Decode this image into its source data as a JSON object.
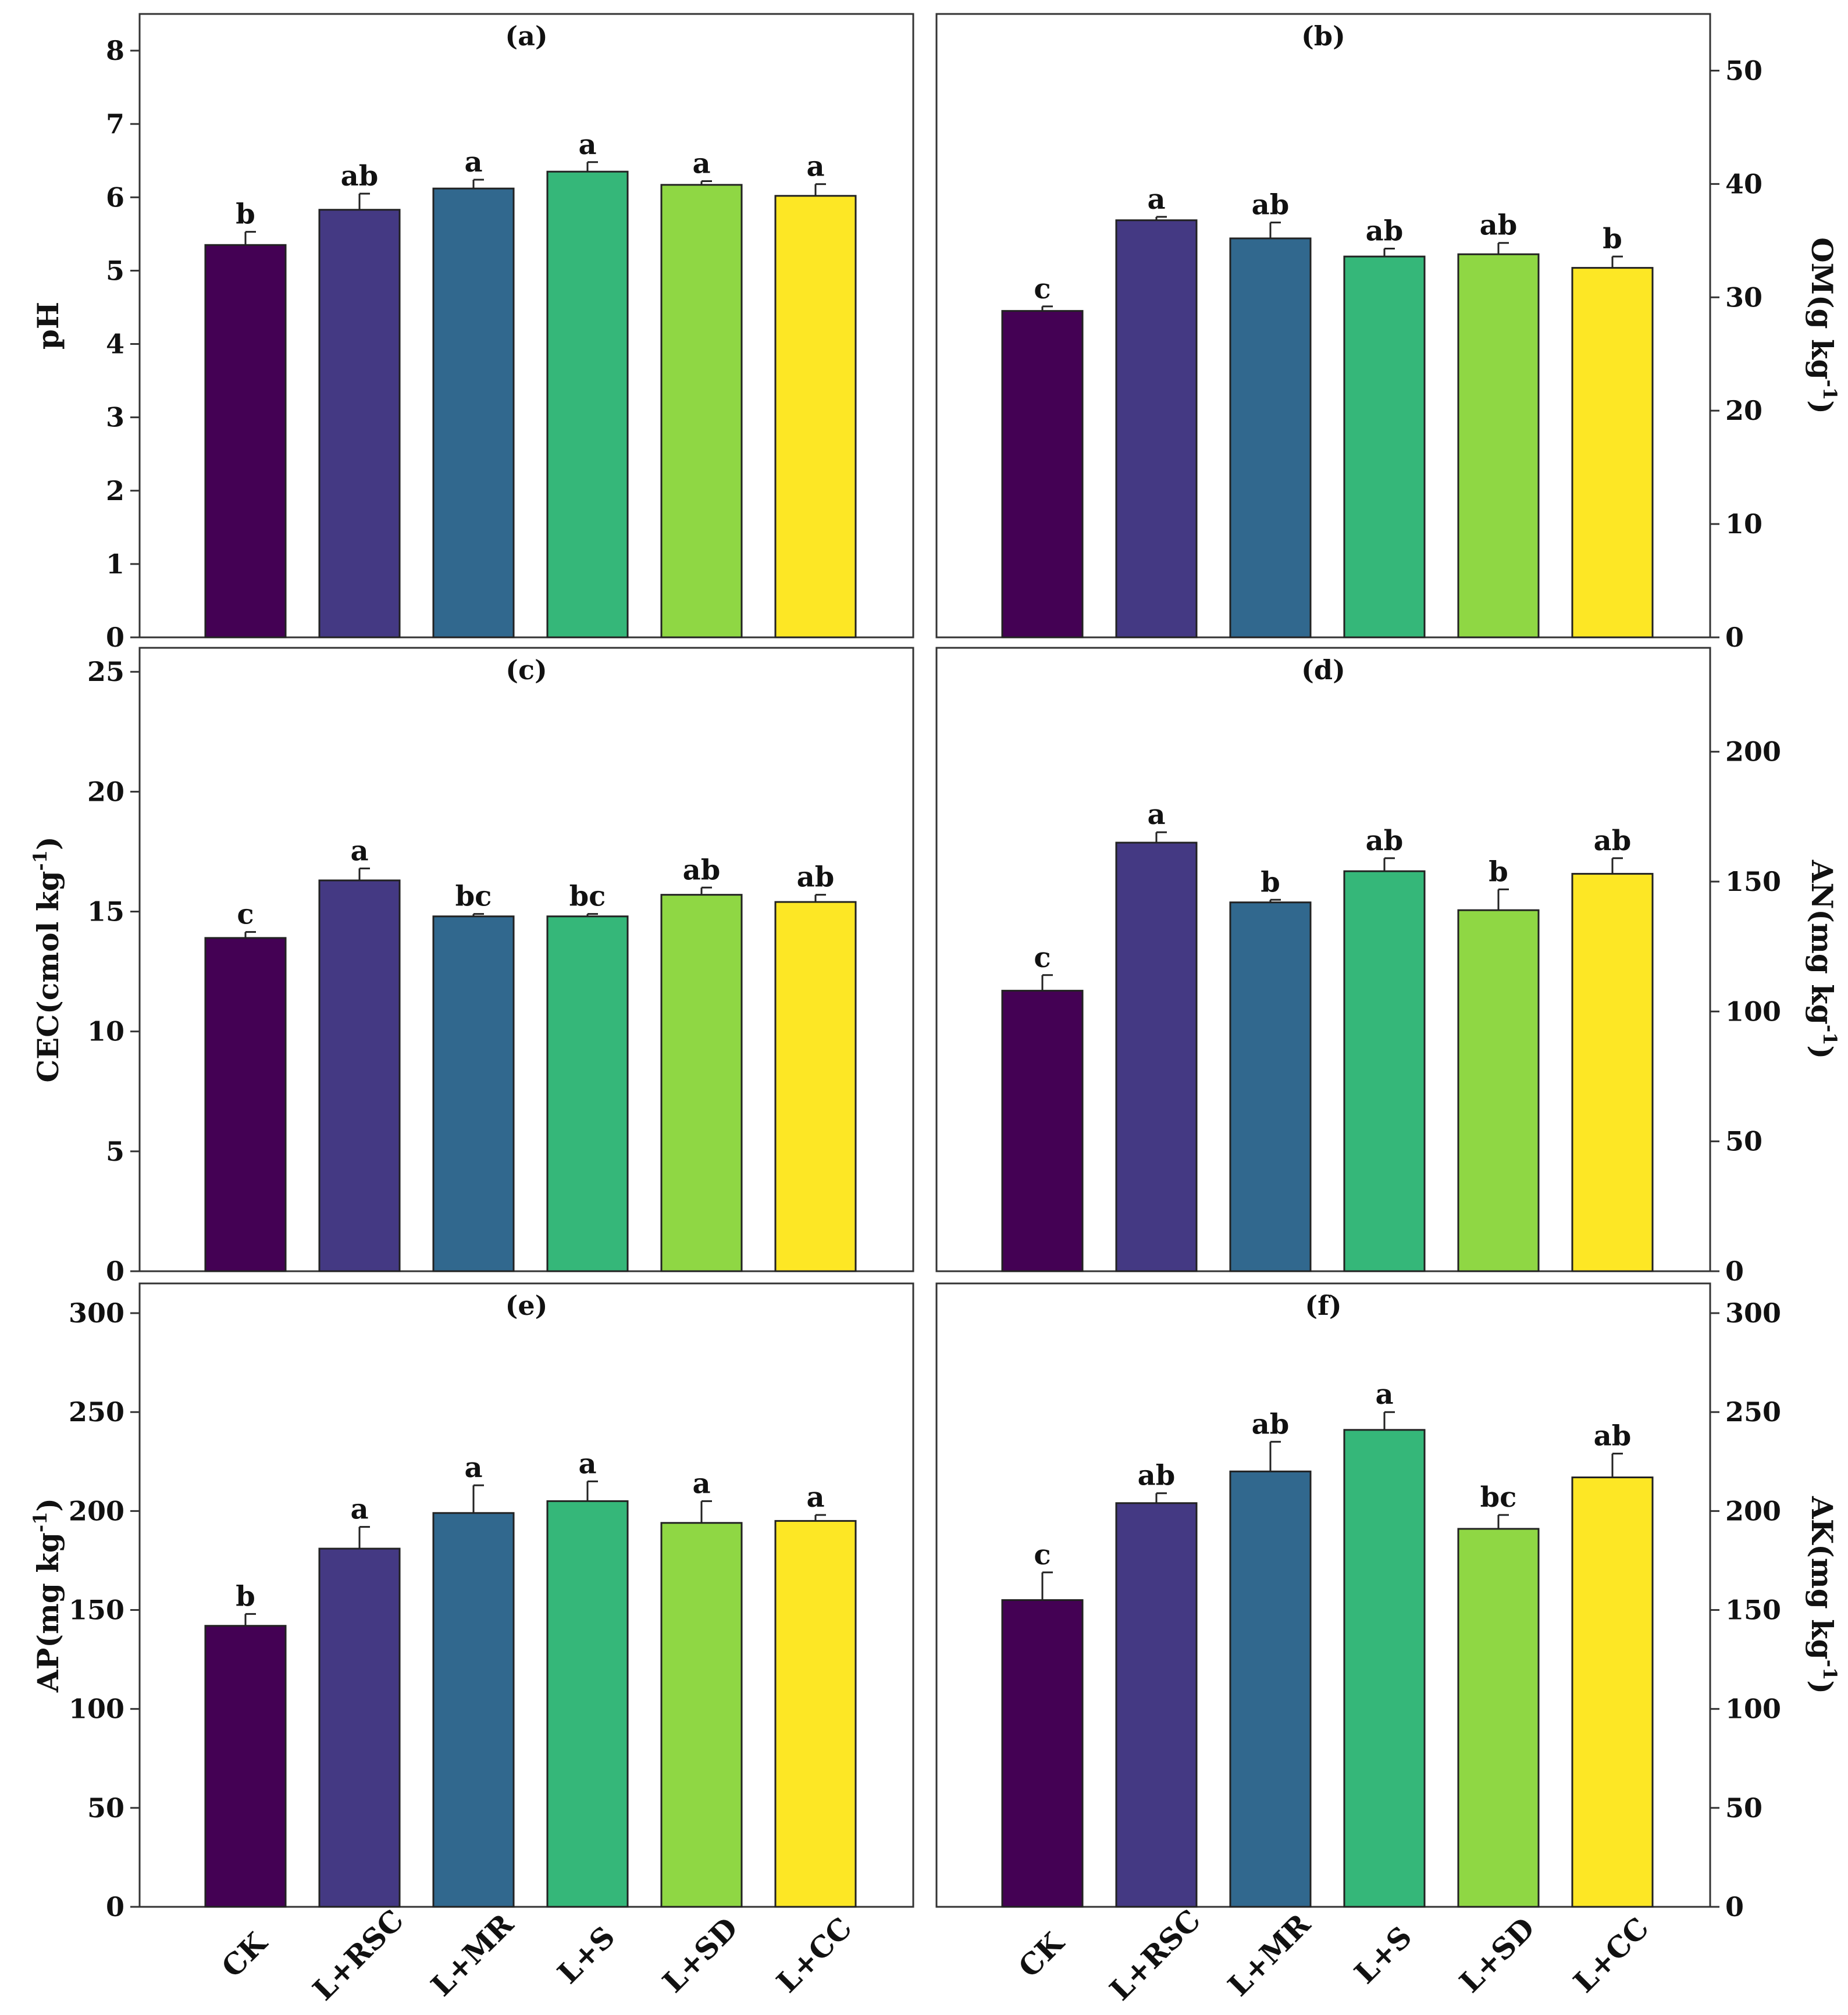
{
  "chart_data": {
    "type": "bar",
    "categories": [
      "CK",
      "L+RSC",
      "L+MR",
      "L+S",
      "L+SD",
      "L+CC"
    ],
    "colors": [
      "#440154",
      "#443983",
      "#31688e",
      "#35b779",
      "#8fd744",
      "#fde725"
    ],
    "panels": [
      {
        "id": "a",
        "title": "(a)",
        "ylabel": "pH",
        "ylabel_sup": "",
        "ylabel_suffix": "",
        "yaxis_side": "left",
        "ylim": [
          0,
          8.5
        ],
        "yticks": [
          0,
          1,
          2,
          3,
          4,
          5,
          6,
          7,
          8
        ],
        "values": [
          5.35,
          5.83,
          6.12,
          6.35,
          6.17,
          6.02
        ],
        "errors": [
          0.18,
          0.22,
          0.12,
          0.13,
          0.05,
          0.16
        ],
        "letters": [
          "b",
          "ab",
          "a",
          "a",
          "a",
          "a"
        ]
      },
      {
        "id": "b",
        "title": "(b)",
        "ylabel": "OM(g kg",
        "ylabel_sup": "-1",
        "ylabel_suffix": ")",
        "yaxis_side": "right",
        "ylim": [
          0,
          55
        ],
        "yticks": [
          0,
          10,
          20,
          30,
          40,
          50
        ],
        "values": [
          28.8,
          36.8,
          35.2,
          33.6,
          33.8,
          32.6
        ],
        "errors": [
          0.4,
          0.3,
          1.4,
          0.7,
          1.0,
          1.0
        ],
        "letters": [
          "c",
          "a",
          "ab",
          "ab",
          "ab",
          "b"
        ]
      },
      {
        "id": "c",
        "title": "(c)",
        "ylabel": "CEC(cmol kg",
        "ylabel_sup": "-1",
        "ylabel_suffix": ")",
        "yaxis_side": "left",
        "ylim": [
          0,
          26
        ],
        "yticks": [
          0,
          5,
          10,
          15,
          20,
          25
        ],
        "values": [
          13.9,
          16.3,
          14.8,
          14.8,
          15.7,
          15.4
        ],
        "errors": [
          0.25,
          0.5,
          0.1,
          0.1,
          0.3,
          0.3
        ],
        "letters": [
          "c",
          "a",
          "bc",
          "bc",
          "ab",
          "ab"
        ]
      },
      {
        "id": "d",
        "title": "(d)",
        "ylabel": "AN(mg kg",
        "ylabel_sup": "-1",
        "ylabel_suffix": ")",
        "yaxis_side": "right",
        "ylim": [
          0,
          240
        ],
        "yticks": [
          0,
          50,
          100,
          150,
          200
        ],
        "values": [
          108,
          165,
          142,
          154,
          139,
          153
        ],
        "errors": [
          6,
          4,
          1,
          5,
          8,
          6
        ],
        "letters": [
          "c",
          "a",
          "b",
          "ab",
          "b",
          "ab"
        ]
      },
      {
        "id": "e",
        "title": "(e)",
        "ylabel": "AP(mg kg",
        "ylabel_sup": "-1",
        "ylabel_suffix": ")",
        "yaxis_side": "left",
        "ylim": [
          0,
          315
        ],
        "yticks": [
          0,
          50,
          100,
          150,
          200,
          250,
          300
        ],
        "values": [
          142,
          181,
          199,
          205,
          194,
          195
        ],
        "errors": [
          6,
          11,
          14,
          10,
          11,
          3
        ],
        "letters": [
          "b",
          "a",
          "a",
          "a",
          "a",
          "a"
        ]
      },
      {
        "id": "f",
        "title": "(f)",
        "ylabel": "AK(mg kg",
        "ylabel_sup": "-1",
        "ylabel_suffix": ")",
        "yaxis_side": "right",
        "ylim": [
          0,
          315
        ],
        "yticks": [
          0,
          50,
          100,
          150,
          200,
          250,
          300
        ],
        "values": [
          155,
          204,
          220,
          241,
          191,
          217
        ],
        "errors": [
          14,
          5,
          15,
          9,
          7,
          12
        ],
        "letters": [
          "c",
          "ab",
          "ab",
          "a",
          "bc",
          "ab"
        ]
      }
    ]
  }
}
